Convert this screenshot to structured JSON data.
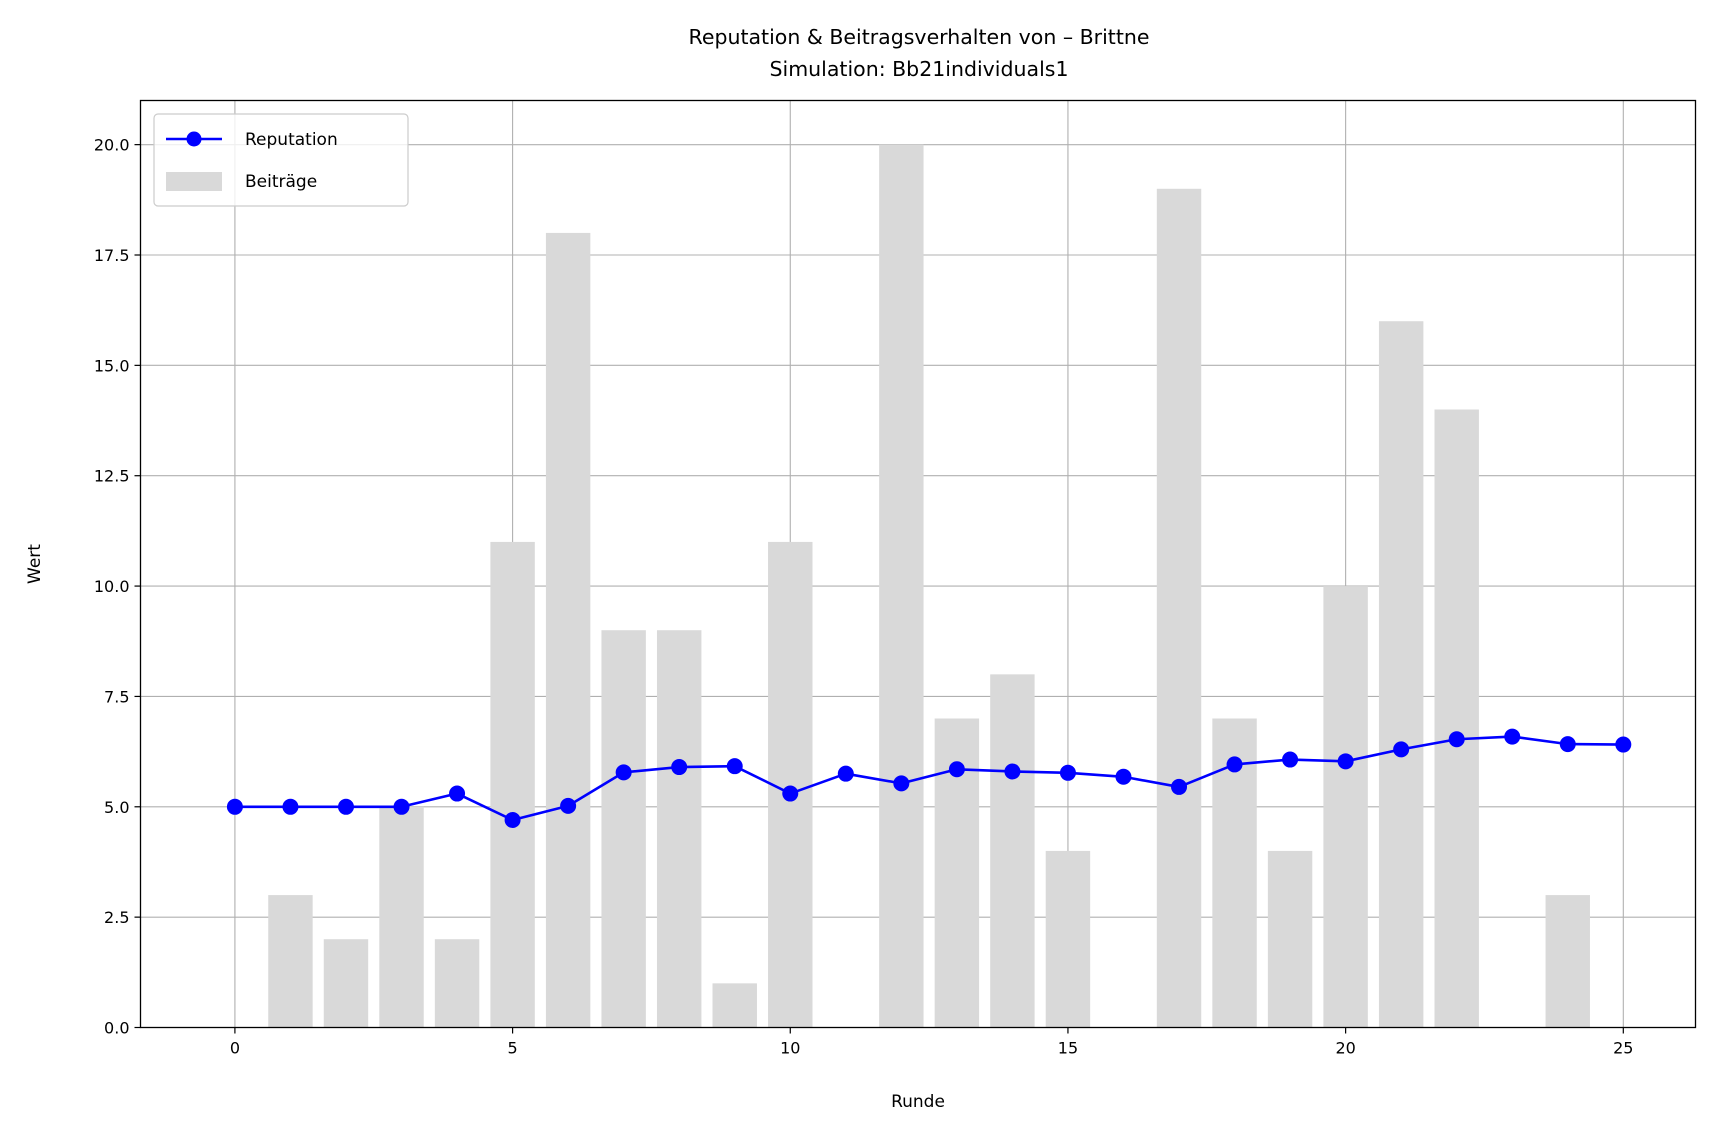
{
  "chart_data": {
    "type": "bar",
    "title": "Reputation & Beitragsverhalten von – Brittne",
    "subtitle": "Simulation: Bb21individuals1",
    "xlabel": "Runde",
    "ylabel": "Wert",
    "xlim": [
      -1.7,
      26.3
    ],
    "ylim": [
      0,
      21
    ],
    "xticks": [
      0,
      5,
      10,
      15,
      20,
      25
    ],
    "xtick_labels": [
      "0",
      "5",
      "10",
      "15",
      "20",
      "25"
    ],
    "yticks": [
      0,
      2.5,
      5,
      7.5,
      10,
      12.5,
      15,
      17.5,
      20
    ],
    "ytick_labels": [
      "0.0",
      "2.5",
      "5.0",
      "7.5",
      "10.0",
      "12.5",
      "15.0",
      "17.5",
      "20.0"
    ],
    "grid": true,
    "legend_position": "top-left",
    "x": [
      0,
      1,
      2,
      3,
      4,
      5,
      6,
      7,
      8,
      9,
      10,
      11,
      12,
      13,
      14,
      15,
      16,
      17,
      18,
      19,
      20,
      21,
      22,
      23,
      24,
      25
    ],
    "series": [
      {
        "name": "Beiträge",
        "kind": "bar",
        "color": "#d9d9d9",
        "values": [
          0,
          3,
          2,
          5,
          2,
          11,
          18,
          9,
          9,
          1,
          11,
          0,
          20,
          7,
          8,
          4,
          0,
          19,
          7,
          4,
          10,
          16,
          14,
          0,
          3,
          0
        ]
      },
      {
        "name": "Reputation",
        "kind": "line",
        "marker": "circle",
        "color": "#0000ff",
        "values": [
          5.0,
          5.0,
          5.0,
          5.0,
          5.3,
          4.7,
          5.02,
          5.78,
          5.9,
          5.92,
          5.3,
          5.75,
          5.53,
          5.85,
          5.8,
          5.77,
          5.68,
          5.45,
          5.96,
          6.07,
          6.03,
          6.3,
          6.53,
          6.59,
          6.42,
          6.41
        ]
      }
    ]
  }
}
